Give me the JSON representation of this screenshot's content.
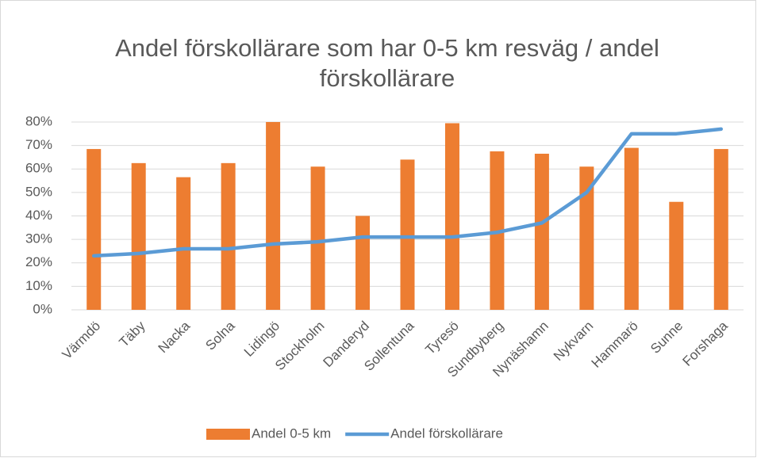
{
  "chart_data": {
    "type": "bar",
    "title": "Andel förskollärare som har 0-5 km resväg / andel förskollärare",
    "categories": [
      "Värmdö",
      "Täby",
      "Nacka",
      "Solna",
      "Lidingö",
      "Stockholm",
      "Danderyd",
      "Sollentuna",
      "Tyresö",
      "Sundbyberg",
      "Nynäshamn",
      "Nykvarn",
      "Hammarö",
      "Sunne",
      "Forshaga"
    ],
    "series": [
      {
        "name": "Andel 0-5 km",
        "type": "bar",
        "color": "#ed7d31",
        "values": [
          68.5,
          62.5,
          56.5,
          62.5,
          80,
          61,
          40,
          64,
          79.5,
          67.5,
          66.5,
          61,
          69,
          46,
          68.5
        ]
      },
      {
        "name": "Andel förskollärare",
        "type": "line",
        "color": "#5b9bd5",
        "values": [
          23,
          24,
          26,
          26,
          28,
          29,
          31,
          31,
          31,
          33,
          37,
          50,
          75,
          75,
          77
        ]
      }
    ],
    "ylim": [
      0,
      80
    ],
    "yticks": [
      {
        "value": 0,
        "label": "0%"
      },
      {
        "value": 10,
        "label": "10%"
      },
      {
        "value": 20,
        "label": "20%"
      },
      {
        "value": 30,
        "label": "30%"
      },
      {
        "value": 40,
        "label": "40%"
      },
      {
        "value": 50,
        "label": "50%"
      },
      {
        "value": 60,
        "label": "60%"
      },
      {
        "value": 70,
        "label": "70%"
      },
      {
        "value": 80,
        "label": "80%"
      }
    ],
    "grid": true,
    "legend": "bottom"
  }
}
